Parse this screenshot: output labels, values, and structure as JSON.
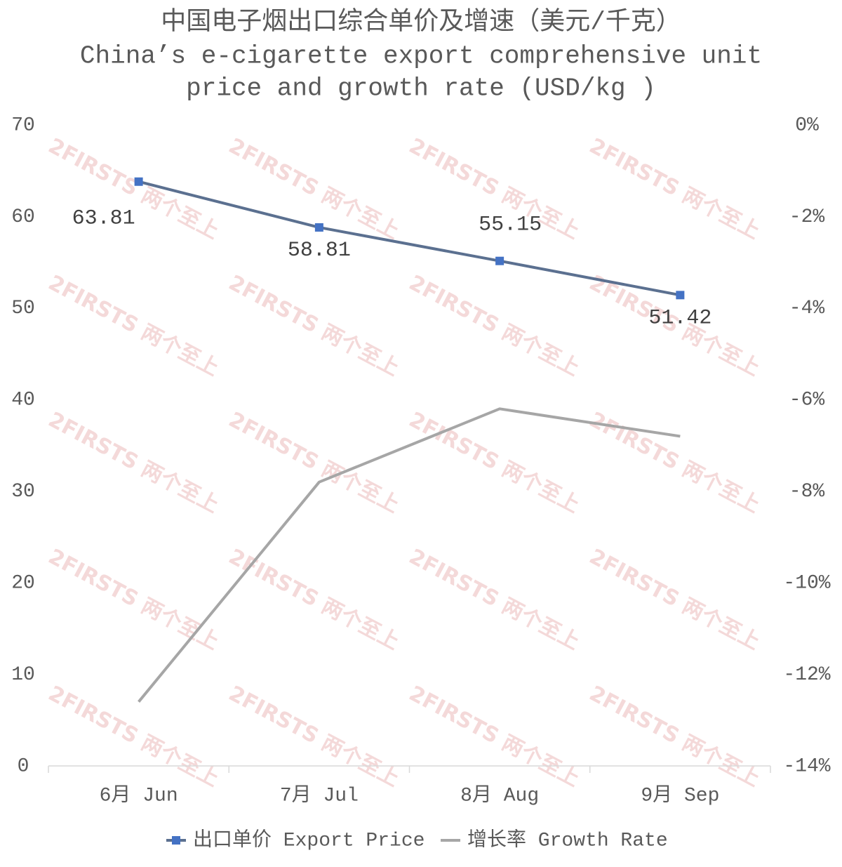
{
  "chart_data": {
    "type": "line",
    "title": "中国电子烟出口综合单价及增速（美元/千克）",
    "subtitle": [
      "China’s e-cigarette export comprehensive unit",
      "price and growth rate (USD/kg )"
    ],
    "watermark": "2FIRSTS 两个至上",
    "categories": [
      "6月 Jun",
      "7月 Jul",
      "8月 Aug",
      "9月 Sep"
    ],
    "series": [
      {
        "name": "出口单价 Export Price",
        "color": "#5b7090",
        "marker_color": "#4472c4",
        "values": [
          63.81,
          58.81,
          55.15,
          51.42
        ],
        "data_labels": true
      },
      {
        "name": "增长率 Growth Rate",
        "color": "#a6a6a6",
        "axis": "y2",
        "values": [
          -12.6,
          -7.8,
          -6.2,
          -6.8
        ]
      }
    ],
    "ylim": [
      0,
      70
    ],
    "yticks": [
      0,
      10,
      20,
      30,
      40,
      50,
      60,
      70
    ],
    "y2lim": [
      -14,
      0
    ],
    "y2ticks": [
      {
        "value": 0,
        "label": "0%"
      },
      {
        "value": -2,
        "label": "-2%"
      },
      {
        "value": -4,
        "label": "-4%"
      },
      {
        "value": -6,
        "label": "-6%"
      },
      {
        "value": -8,
        "label": "-8%"
      },
      {
        "value": -10,
        "label": "-10%"
      },
      {
        "value": -12,
        "label": "-12%"
      },
      {
        "value": -14,
        "label": "-14%"
      }
    ],
    "grid": false,
    "legend": "bottom"
  }
}
